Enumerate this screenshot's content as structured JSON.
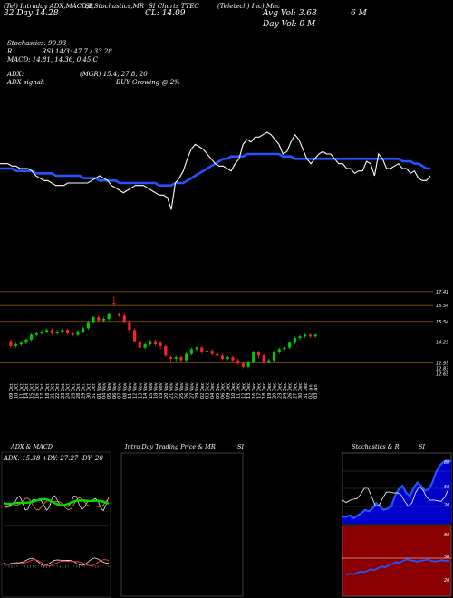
{
  "header": {
    "col1_line1": "(Tel) Intraday ADX,MACD,B",
    "col1_line2": "32 Day  14.28",
    "col2_line1": "SI,Stochastics,MR",
    "col2_line2": "CL: 14.09",
    "col3_line1": "SI Charts TTEC",
    "col4_line1": "(Teletech)  Inc)  Mac",
    "col4_line2": "Avg Vol: 3.68",
    "col4_line3": "Day Vol: 0   M",
    "col5_line2": "6   M"
  },
  "indicators": {
    "stoch": "Stochastics: 90.93",
    "rsi": "RSI 14/3: 47.7 / 33.28",
    "r_label": "R",
    "macd": "MACD: 14.81, 14.36, 0.45 C",
    "adx": "ADX:",
    "mgr": "(MGR) 15.4, 27.8, 20",
    "adx_signal": "ADX signal:",
    "buy": "BUY Growing @ 2%"
  },
  "panels": {
    "adx_title": "ADX & MACD",
    "adx_values": "ADX: 15.38  +DY: 27.27  -DY: 20",
    "intraday_title": "Intra Day Trading Price & MR",
    "intraday_si": "SI",
    "stoch_title": "Stochastics & R",
    "stoch_si": "SI",
    "stoch_ticks": [
      "80",
      "50",
      "20"
    ],
    "rsi_ticks": [
      "80",
      "50",
      "20"
    ]
  },
  "colors": {
    "up": "#00cc00",
    "down": "#ff2222",
    "ma_line": "#2255ff",
    "price_line": "#ffffff",
    "grid": "#8a5a10",
    "stoch_bg": "#000000",
    "stoch_fill": "#0000cc",
    "rsi_bg": "#8b0000"
  },
  "chart_data": {
    "type": "candlestick",
    "price_labels": [
      "17.41",
      "16.54",
      "15.54",
      "14.25",
      "12.95",
      "12.83",
      "12.65"
    ],
    "categories": [
      "09 Oct",
      "10 Oct",
      "11 Oct",
      "14 Oct",
      "15 Oct",
      "16 Oct",
      "17 Oct",
      "18 Oct",
      "21 Oct",
      "22 Oct",
      "23 Oct",
      "24 Oct",
      "25 Oct",
      "28 Oct",
      "29 Oct",
      "30 Oct",
      "31 Oct",
      "01 Nov",
      "04 Nov",
      "05 Nov",
      "06 Nov",
      "07 Nov",
      "08 Nov",
      "11 Nov",
      "12 Nov",
      "13 Nov",
      "14 Nov",
      "15 Nov",
      "18 Nov",
      "19 Nov",
      "20 Nov",
      "21 Nov",
      "22 Nov",
      "25 Nov",
      "26 Nov",
      "27 Nov",
      "29 Nov",
      "02 Dec",
      "03 Dec",
      "04 Dec",
      "05 Dec",
      "06 Dec",
      "09 Dec",
      "10 Dec",
      "11 Dec",
      "12 Dec",
      "13 Dec",
      "16 Dec",
      "17 Dec",
      "18 Dec",
      "19 Dec",
      "20 Dec",
      "23 Dec",
      "24 Dec",
      "26 Dec",
      "27 Dec",
      "30 Dec",
      "31 Dec",
      "02 Jan",
      "03 Jan"
    ],
    "candles": [
      {
        "o": 14.3,
        "c": 14.0,
        "h": 14.4,
        "l": 13.9
      },
      {
        "o": 14.0,
        "c": 14.1,
        "h": 14.2,
        "l": 13.9
      },
      {
        "o": 14.1,
        "c": 14.2,
        "h": 14.3,
        "l": 14.0
      },
      {
        "o": 14.2,
        "c": 14.4,
        "h": 14.5,
        "l": 14.1
      },
      {
        "o": 14.4,
        "c": 14.7,
        "h": 14.8,
        "l": 14.3
      },
      {
        "o": 14.7,
        "c": 14.8,
        "h": 14.9,
        "l": 14.6
      },
      {
        "o": 14.8,
        "c": 14.9,
        "h": 15.0,
        "l": 14.7
      },
      {
        "o": 14.9,
        "c": 15.0,
        "h": 15.1,
        "l": 14.8
      },
      {
        "o": 15.0,
        "c": 14.8,
        "h": 15.1,
        "l": 14.7
      },
      {
        "o": 14.8,
        "c": 14.9,
        "h": 15.0,
        "l": 14.7
      },
      {
        "o": 14.9,
        "c": 15.0,
        "h": 15.1,
        "l": 14.8
      },
      {
        "o": 15.0,
        "c": 14.8,
        "h": 15.1,
        "l": 14.7
      },
      {
        "o": 14.8,
        "c": 14.7,
        "h": 14.9,
        "l": 14.6
      },
      {
        "o": 14.7,
        "c": 14.9,
        "h": 15.0,
        "l": 14.6
      },
      {
        "o": 14.9,
        "c": 15.1,
        "h": 15.2,
        "l": 14.8
      },
      {
        "o": 15.1,
        "c": 15.5,
        "h": 15.6,
        "l": 15.0
      },
      {
        "o": 15.5,
        "c": 15.8,
        "h": 15.9,
        "l": 15.4
      },
      {
        "o": 15.8,
        "c": 15.6,
        "h": 15.9,
        "l": 15.5
      },
      {
        "o": 15.6,
        "c": 15.7,
        "h": 15.8,
        "l": 15.5
      },
      {
        "o": 15.7,
        "c": 16.0,
        "h": 16.1,
        "l": 15.6
      },
      {
        "o": 16.7,
        "c": 16.6,
        "h": 17.1,
        "l": 16.5
      },
      {
        "o": 16.0,
        "c": 15.9,
        "h": 16.1,
        "l": 15.8
      },
      {
        "o": 15.9,
        "c": 15.5,
        "h": 16.0,
        "l": 15.4
      },
      {
        "o": 15.5,
        "c": 15.0,
        "h": 15.6,
        "l": 14.9
      },
      {
        "o": 15.0,
        "c": 14.3,
        "h": 15.1,
        "l": 14.2
      },
      {
        "o": 14.3,
        "c": 13.9,
        "h": 14.4,
        "l": 13.8
      },
      {
        "o": 13.9,
        "c": 14.1,
        "h": 14.2,
        "l": 13.8
      },
      {
        "o": 14.1,
        "c": 14.3,
        "h": 14.4,
        "l": 14.0
      },
      {
        "o": 14.3,
        "c": 14.1,
        "h": 14.4,
        "l": 14.0
      },
      {
        "o": 14.2,
        "c": 14.0,
        "h": 14.3,
        "l": 13.8
      },
      {
        "o": 14.0,
        "c": 13.4,
        "h": 14.1,
        "l": 13.3
      },
      {
        "o": 13.3,
        "c": 13.2,
        "h": 13.4,
        "l": 13.0
      },
      {
        "o": 13.2,
        "c": 13.3,
        "h": 13.4,
        "l": 13.0
      },
      {
        "o": 13.3,
        "c": 13.1,
        "h": 13.4,
        "l": 13.0
      },
      {
        "o": 13.1,
        "c": 13.5,
        "h": 13.6,
        "l": 13.0
      },
      {
        "o": 13.5,
        "c": 13.8,
        "h": 13.9,
        "l": 13.4
      },
      {
        "o": 13.8,
        "c": 13.9,
        "h": 14.0,
        "l": 13.7
      },
      {
        "o": 13.9,
        "c": 13.6,
        "h": 14.0,
        "l": 13.5
      },
      {
        "o": 13.6,
        "c": 13.7,
        "h": 13.8,
        "l": 13.5
      },
      {
        "o": 13.7,
        "c": 13.5,
        "h": 13.8,
        "l": 13.4
      },
      {
        "o": 13.5,
        "c": 13.4,
        "h": 13.6,
        "l": 13.3
      },
      {
        "o": 13.4,
        "c": 13.2,
        "h": 13.5,
        "l": 13.1
      },
      {
        "o": 13.2,
        "c": 13.3,
        "h": 13.4,
        "l": 13.1
      },
      {
        "o": 13.3,
        "c": 13.1,
        "h": 13.4,
        "l": 13.0
      },
      {
        "o": 13.1,
        "c": 12.9,
        "h": 13.2,
        "l": 12.8
      },
      {
        "o": 12.9,
        "c": 12.7,
        "h": 13.0,
        "l": 12.6
      },
      {
        "o": 12.7,
        "c": 13.0,
        "h": 13.1,
        "l": 12.6
      },
      {
        "o": 13.0,
        "c": 13.6,
        "h": 13.7,
        "l": 12.9
      },
      {
        "o": 13.6,
        "c": 13.4,
        "h": 13.7,
        "l": 13.2
      },
      {
        "o": 13.4,
        "c": 13.0,
        "h": 13.5,
        "l": 12.9
      },
      {
        "o": 13.0,
        "c": 13.1,
        "h": 13.2,
        "l": 12.9
      },
      {
        "o": 13.1,
        "c": 13.6,
        "h": 13.7,
        "l": 13.0
      },
      {
        "o": 13.6,
        "c": 13.8,
        "h": 13.9,
        "l": 13.5
      },
      {
        "o": 13.8,
        "c": 13.9,
        "h": 14.0,
        "l": 13.7
      },
      {
        "o": 13.9,
        "c": 14.2,
        "h": 14.3,
        "l": 13.8
      },
      {
        "o": 14.2,
        "c": 14.5,
        "h": 14.6,
        "l": 14.1
      },
      {
        "o": 14.5,
        "c": 14.6,
        "h": 14.7,
        "l": 14.4
      },
      {
        "o": 14.6,
        "c": 14.7,
        "h": 14.8,
        "l": 14.5
      },
      {
        "o": 14.7,
        "c": 14.6,
        "h": 14.8,
        "l": 14.5
      },
      {
        "o": 14.6,
        "c": 14.7,
        "h": 14.8,
        "l": 14.5
      }
    ],
    "ylim": [
      12.4,
      17.8
    ],
    "overlay": {
      "price_line": [
        46,
        46,
        46,
        45,
        45,
        44,
        44,
        44,
        43,
        41,
        40,
        39,
        39,
        38,
        37,
        37,
        37,
        38,
        38,
        38,
        38,
        38,
        38,
        39,
        40,
        41,
        40,
        39,
        37,
        36,
        35,
        34,
        35,
        36,
        37,
        37,
        37,
        36,
        35,
        34,
        33,
        33,
        32,
        27,
        38,
        40,
        43,
        48,
        52,
        54,
        53,
        52,
        50,
        48,
        46,
        45,
        45,
        44,
        43,
        46,
        48,
        54,
        56,
        55,
        57,
        57,
        58,
        59,
        58,
        56,
        54,
        50,
        51,
        55,
        58,
        56,
        52,
        48,
        46,
        48,
        50,
        51,
        50,
        50,
        48,
        46,
        46,
        44,
        44,
        42,
        43,
        43,
        47,
        46,
        41,
        50,
        48,
        44,
        44,
        45,
        46,
        44,
        44,
        42,
        43,
        40,
        39,
        39,
        41
      ],
      "ma_line": [
        44,
        44,
        44,
        44,
        43,
        43,
        43,
        43,
        43,
        42,
        42,
        42,
        42,
        42,
        41,
        41,
        41,
        41,
        41,
        41,
        41,
        40,
        40,
        40,
        40,
        39,
        39,
        39,
        39,
        39,
        38,
        38,
        38,
        38,
        38,
        38,
        38,
        38,
        38,
        38,
        37,
        37,
        37,
        37,
        38,
        38,
        38,
        39,
        40,
        41,
        42,
        43,
        44,
        45,
        46,
        47,
        48,
        48,
        49,
        49,
        49,
        49,
        50,
        50,
        50,
        50,
        50,
        50,
        50,
        50,
        50,
        49,
        49,
        49,
        48,
        48,
        48,
        48,
        48,
        48,
        48,
        48,
        48,
        48,
        48,
        48,
        48,
        48,
        48,
        48,
        48,
        48,
        48,
        48,
        48,
        48,
        48,
        48,
        48,
        48,
        48,
        47,
        47,
        47,
        46,
        46,
        45,
        44,
        44
      ]
    }
  }
}
